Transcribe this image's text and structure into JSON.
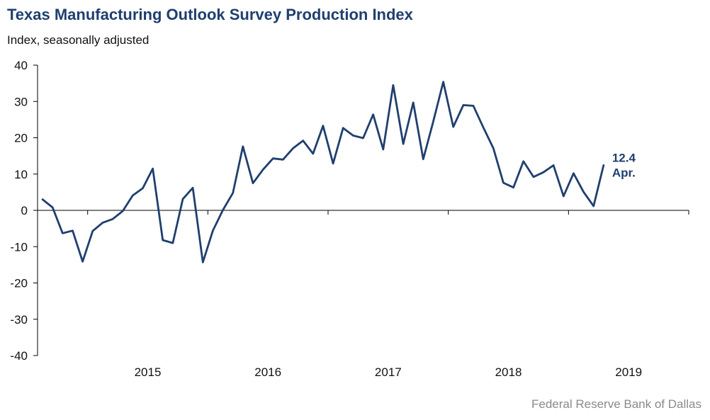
{
  "header": {
    "title": "Texas Manufacturing Outlook Survey Production Index",
    "subtitle": "Index, seasonally adjusted"
  },
  "footer": {
    "source": "Federal Reserve Bank of Dallas"
  },
  "colors": {
    "line": "#1f3f6e",
    "axis": "#000000"
  },
  "chart_data": {
    "type": "line",
    "title": "Texas Manufacturing Outlook Survey Production Index",
    "ylabel": "Index, seasonally adjusted",
    "xlabel": "",
    "ylim": [
      -40,
      40
    ],
    "yticks": [
      -40,
      -30,
      -20,
      -10,
      0,
      10,
      20,
      30,
      40
    ],
    "xlim": [
      "2014-08",
      "2019-12"
    ],
    "xtick_labels": [
      "2015",
      "2016",
      "2017",
      "2018",
      "2019"
    ],
    "grid": false,
    "end_annotation": {
      "value": "12.4",
      "label": "Apr."
    },
    "series": [
      {
        "x": [
          "2014-08",
          "2014-09",
          "2014-10",
          "2014-11",
          "2014-12",
          "2015-01",
          "2015-02",
          "2015-03",
          "2015-04",
          "2015-05",
          "2015-06",
          "2015-07",
          "2015-08",
          "2015-09",
          "2015-10",
          "2015-11",
          "2015-12",
          "2016-01",
          "2016-02",
          "2016-03",
          "2016-04",
          "2016-05",
          "2016-06",
          "2016-07",
          "2016-08",
          "2016-09",
          "2016-10",
          "2016-11",
          "2016-12",
          "2017-01",
          "2017-02",
          "2017-03",
          "2017-04",
          "2017-05",
          "2017-06",
          "2017-07",
          "2017-08",
          "2017-09",
          "2017-10",
          "2017-11",
          "2017-12",
          "2018-01",
          "2018-02",
          "2018-03",
          "2018-04",
          "2018-05",
          "2018-06",
          "2018-07",
          "2018-08",
          "2018-09",
          "2018-10",
          "2018-11",
          "2018-12",
          "2019-01",
          "2019-02",
          "2019-03",
          "2019-04"
        ],
        "values": [
          3.0,
          0.8,
          -6.3,
          -5.6,
          -14.1,
          -5.7,
          -3.4,
          -2.4,
          -0.2,
          4.1,
          6.1,
          11.5,
          -8.2,
          -9.0,
          3.1,
          6.2,
          -14.3,
          -5.6,
          0.1,
          4.8,
          17.6,
          7.5,
          11.2,
          14.3,
          14.0,
          17.1,
          19.2,
          15.6,
          23.3,
          12.9,
          22.7,
          20.6,
          19.9,
          26.4,
          16.8,
          34.5,
          18.3,
          29.7,
          14.1,
          24.5,
          35.4,
          23.0,
          29.0,
          28.8,
          22.8,
          17.1,
          7.6,
          6.3,
          13.5,
          9.2,
          10.5,
          12.4,
          3.9,
          10.2,
          5.1,
          1.2,
          12.4
        ]
      }
    ]
  }
}
